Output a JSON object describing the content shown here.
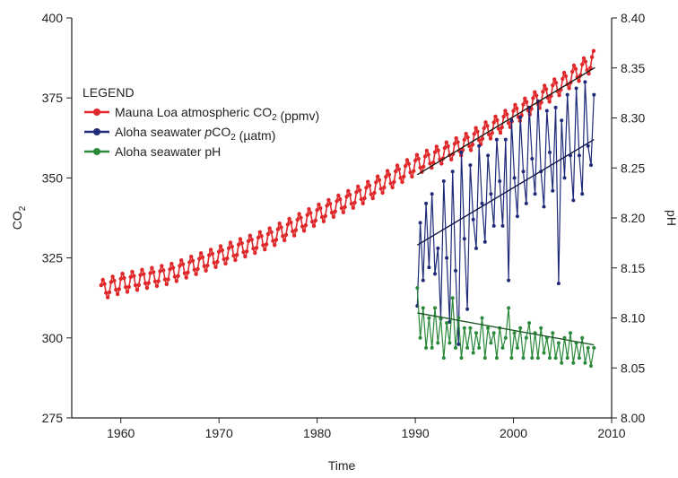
{
  "chart_data": {
    "type": "line",
    "title": "",
    "xlabel": "Time",
    "ylabel_left": "CO2",
    "ylabel_right": "pH",
    "xlim": [
      1955,
      2010
    ],
    "ylim_left": [
      275,
      400
    ],
    "ylim_right": [
      8.0,
      8.4
    ],
    "x_ticks": [
      1960,
      1970,
      1980,
      1990,
      2000,
      2010
    ],
    "y_left_ticks": [
      275,
      300,
      325,
      350,
      375,
      400
    ],
    "y_right_ticks": [
      "8.00",
      "8.05",
      "8.10",
      "8.15",
      "8.20",
      "8.25",
      "8.30",
      "8.35",
      "8.40"
    ],
    "grid": false,
    "legend": {
      "title": "LEGEND",
      "placement": "top-left",
      "entries": [
        {
          "prefix": "Mauna Loa atmospheric CO",
          "sub": "2",
          "suffix": " (ppmv)",
          "color": "#e0282a"
        },
        {
          "prefix": "Aloha seawater ",
          "italic": "p",
          "mid": "CO",
          "sub": "2",
          "suffix": " (µatm)",
          "color": "#1f2a78"
        },
        {
          "prefix": "Aloha seawater pH",
          "color": "#2a8a3a"
        }
      ]
    },
    "series": [
      {
        "name": "Mauna Loa atmospheric CO2 (ppmv)",
        "axis": "left",
        "color": "#e0282a",
        "seasonal_amplitude": 3,
        "x": [
          1958,
          1960,
          1965,
          1970,
          1975,
          1980,
          1985,
          1990,
          1995,
          2000,
          2005,
          2008.3
        ],
        "y": [
          315,
          317,
          320,
          325.5,
          331,
          338.5,
          345.5,
          354,
          360.5,
          369.5,
          379.5,
          387
        ]
      },
      {
        "name": "Aloha seawater pCO2 (µatm)",
        "axis": "left",
        "color": "#1f2a78",
        "x": [
          1990.2,
          1990.5,
          1990.8,
          1991.1,
          1991.4,
          1991.7,
          1992.0,
          1992.3,
          1992.6,
          1992.9,
          1993.2,
          1993.5,
          1993.8,
          1994.1,
          1994.4,
          1994.7,
          1995.0,
          1995.3,
          1995.6,
          1995.9,
          1996.2,
          1996.5,
          1996.8,
          1997.1,
          1997.4,
          1997.7,
          1998.0,
          1998.3,
          1998.6,
          1998.9,
          1999.2,
          1999.5,
          1999.8,
          2000.1,
          2000.4,
          2000.7,
          2001.0,
          2001.3,
          2001.6,
          2001.9,
          2002.2,
          2002.5,
          2002.8,
          2003.1,
          2003.4,
          2003.7,
          2004.0,
          2004.3,
          2004.6,
          2004.9,
          2005.2,
          2005.5,
          2005.8,
          2006.1,
          2006.4,
          2006.7,
          2007.0,
          2007.3,
          2007.6,
          2007.9,
          2008.2
        ],
        "y": [
          310,
          336,
          318,
          342,
          322,
          345,
          320,
          328,
          306,
          349,
          325,
          305,
          352,
          321,
          298,
          358,
          331,
          309,
          354,
          337,
          328,
          360,
          342,
          330,
          357,
          345,
          335,
          362,
          349,
          335,
          362,
          318,
          368,
          350,
          338,
          369,
          352,
          342,
          372,
          356,
          345,
          374,
          352,
          341,
          371,
          358,
          346,
          372,
          317,
          368,
          350,
          376,
          357,
          343,
          378,
          357,
          345,
          380,
          360,
          354,
          376
        ],
        "trend": {
          "x": [
            1990.2,
            2008.2
          ],
          "y": [
            329,
            362
          ]
        }
      },
      {
        "name": "Aloha seawater pH",
        "axis": "right",
        "color": "#2a8a3a",
        "x": [
          1990.2,
          1990.5,
          1990.8,
          1991.1,
          1991.4,
          1991.7,
          1992.0,
          1992.3,
          1992.6,
          1992.9,
          1993.2,
          1993.5,
          1993.8,
          1994.1,
          1994.4,
          1994.7,
          1995.0,
          1995.3,
          1995.6,
          1995.9,
          1996.2,
          1996.5,
          1996.8,
          1997.1,
          1997.4,
          1997.7,
          1998.0,
          1998.3,
          1998.6,
          1998.9,
          1999.2,
          1999.5,
          1999.8,
          2000.1,
          2000.4,
          2000.7,
          2001.0,
          2001.3,
          2001.6,
          2001.9,
          2002.2,
          2002.5,
          2002.8,
          2003.1,
          2003.4,
          2003.7,
          2004.0,
          2004.3,
          2004.6,
          2004.9,
          2005.2,
          2005.5,
          2005.8,
          2006.1,
          2006.4,
          2006.7,
          2007.0,
          2007.3,
          2007.6,
          2007.9,
          2008.2
        ],
        "y": [
          8.13,
          8.08,
          8.11,
          8.07,
          8.1,
          8.07,
          8.11,
          8.075,
          8.1,
          8.06,
          8.095,
          8.075,
          8.12,
          8.07,
          8.1,
          8.06,
          8.09,
          8.07,
          8.09,
          8.065,
          8.085,
          8.07,
          8.1,
          8.06,
          8.09,
          8.075,
          8.085,
          8.06,
          8.09,
          8.07,
          8.08,
          8.11,
          8.06,
          8.085,
          8.07,
          8.09,
          8.06,
          8.08,
          8.095,
          8.06,
          8.085,
          8.06,
          8.09,
          8.065,
          8.08,
          8.06,
          8.085,
          8.06,
          8.075,
          8.055,
          8.08,
          8.06,
          8.085,
          8.055,
          8.075,
          8.06,
          8.08,
          8.055,
          8.07,
          8.052,
          8.07
        ],
        "trend": {
          "x": [
            1990.2,
            2008.2
          ],
          "y": [
            8.105,
            8.073
          ]
        }
      }
    ]
  }
}
